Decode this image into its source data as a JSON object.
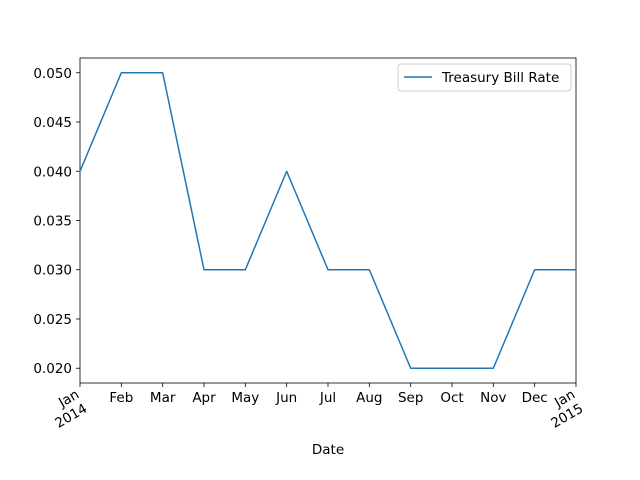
{
  "chart_data": {
    "type": "line",
    "title": "",
    "xlabel": "Date",
    "ylabel": "",
    "x": [
      "Jan 2014",
      "Feb",
      "Mar",
      "Apr",
      "May",
      "Jun",
      "Jul",
      "Aug",
      "Sep",
      "Oct",
      "Nov",
      "Dec",
      "Jan 2015"
    ],
    "series": [
      {
        "name": "Treasury Bill Rate",
        "color": "#1f77b4",
        "values": [
          0.04,
          0.05,
          0.05,
          0.03,
          0.03,
          0.04,
          0.03,
          0.03,
          0.02,
          0.02,
          0.02,
          0.03,
          0.03
        ]
      }
    ],
    "ylim": [
      0.0185,
      0.0515
    ],
    "yticks": [
      "0.020",
      "0.025",
      "0.030",
      "0.035",
      "0.040",
      "0.045",
      "0.050"
    ],
    "xticks": [
      {
        "label": "Jan",
        "sub": "2014",
        "rotated": true
      },
      {
        "label": "Feb"
      },
      {
        "label": "Mar"
      },
      {
        "label": "Apr"
      },
      {
        "label": "May"
      },
      {
        "label": "Jun"
      },
      {
        "label": "Jul"
      },
      {
        "label": "Aug"
      },
      {
        "label": "Sep"
      },
      {
        "label": "Oct"
      },
      {
        "label": "Nov"
      },
      {
        "label": "Dec"
      },
      {
        "label": "Jan",
        "sub": "2015",
        "rotated": true
      }
    ],
    "legend": {
      "position": "top-right",
      "entries": [
        "Treasury Bill Rate"
      ]
    },
    "grid": false
  }
}
